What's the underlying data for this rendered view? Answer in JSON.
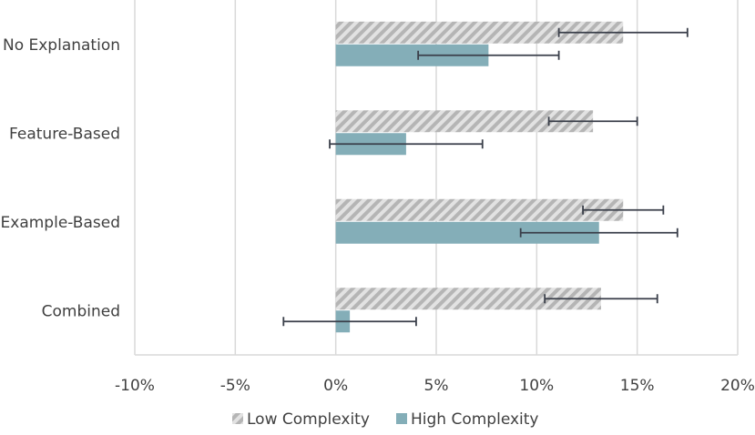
{
  "chart_data": {
    "type": "bar",
    "orientation": "horizontal",
    "categories": [
      "No Explanation",
      "Feature-Based",
      "Example-Based",
      "Combined"
    ],
    "series": [
      {
        "name": "Low Complexity",
        "values": [
          14.3,
          12.8,
          14.3,
          13.2
        ],
        "error": [
          3.2,
          2.2,
          2.0,
          2.8
        ],
        "color": "#bfbfbf",
        "pattern": "diagonal-stripes"
      },
      {
        "name": "High Complexity",
        "values": [
          7.6,
          3.5,
          13.1,
          0.7
        ],
        "error": [
          3.5,
          3.8,
          3.9,
          3.3
        ],
        "color": "#84aeb8",
        "pattern": "solid"
      }
    ],
    "xlim": [
      -10,
      20
    ],
    "xticks": [
      -10,
      -5,
      0,
      5,
      10,
      15,
      20
    ],
    "tick_labels": [
      "-10%",
      "-5%",
      "0%",
      "5%",
      "10%",
      "15%",
      "20%"
    ],
    "title": "",
    "xlabel": "",
    "ylabel": "",
    "grid": "vertical",
    "legend_position": "bottom"
  }
}
